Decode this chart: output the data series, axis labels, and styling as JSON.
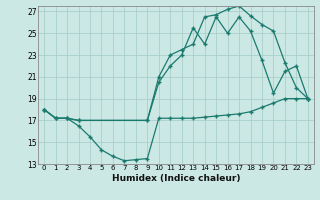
{
  "xlabel": "Humidex (Indice chaleur)",
  "bg_color": "#cce8e4",
  "grid_color": "#aad0cc",
  "line_color": "#1a7a6e",
  "ylim": [
    13,
    27.5
  ],
  "xlim": [
    -0.5,
    23.5
  ],
  "yticks": [
    13,
    15,
    17,
    19,
    21,
    23,
    25,
    27
  ],
  "xticks": [
    0,
    1,
    2,
    3,
    4,
    5,
    6,
    7,
    8,
    9,
    10,
    11,
    12,
    13,
    14,
    15,
    16,
    17,
    18,
    19,
    20,
    21,
    22,
    23
  ],
  "line1_x": [
    0,
    1,
    2,
    3,
    4,
    5,
    6,
    7,
    8,
    9,
    10,
    11,
    12,
    13,
    14,
    15,
    16,
    17,
    18,
    19,
    20,
    21,
    22,
    23
  ],
  "line1_y": [
    18.0,
    17.2,
    17.2,
    16.5,
    15.5,
    14.3,
    13.7,
    13.3,
    13.4,
    13.5,
    17.2,
    17.2,
    17.2,
    17.2,
    17.3,
    17.4,
    17.5,
    17.6,
    17.8,
    18.2,
    18.6,
    19.0,
    19.0,
    19.0
  ],
  "line2_x": [
    0,
    1,
    2,
    3,
    9,
    10,
    11,
    12,
    13,
    14,
    15,
    16,
    17,
    18,
    19,
    20,
    21,
    22,
    23
  ],
  "line2_y": [
    18.0,
    17.2,
    17.2,
    17.0,
    17.0,
    21.0,
    23.0,
    23.5,
    24.0,
    26.5,
    26.7,
    27.2,
    27.5,
    26.6,
    25.8,
    25.2,
    22.3,
    20.0,
    19.0
  ],
  "line3_x": [
    0,
    1,
    2,
    3,
    9,
    10,
    11,
    12,
    13,
    14,
    15,
    16,
    17,
    18,
    19,
    20,
    21,
    22,
    23
  ],
  "line3_y": [
    18.0,
    17.2,
    17.2,
    17.0,
    17.0,
    20.5,
    22.0,
    23.0,
    25.5,
    24.0,
    26.5,
    25.0,
    26.5,
    25.2,
    22.5,
    19.5,
    21.5,
    22.0,
    19.0
  ]
}
